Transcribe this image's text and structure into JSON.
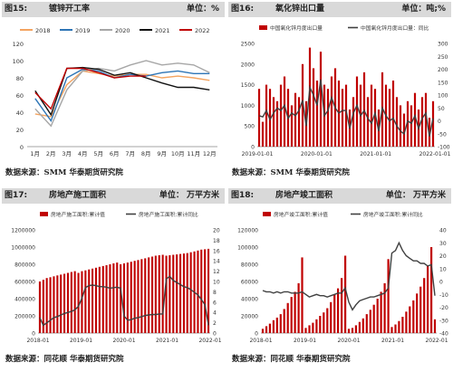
{
  "panels": [
    {
      "fig": "图15:",
      "title": "镀锌开工率",
      "unit": "单位：%",
      "source": "数据来源：SMM 华泰期货研究院",
      "chart_data": {
        "type": "line",
        "categories": [
          "1月",
          "2月",
          "3月",
          "4月",
          "5月",
          "6月",
          "7月",
          "8月",
          "9月",
          "10月",
          "11月",
          "12月"
        ],
        "ylim": [
          0,
          120
        ],
        "yticks": [
          0,
          20,
          40,
          60,
          80,
          100,
          120
        ],
        "grid": false,
        "legend": "top",
        "series": [
          {
            "name": "2018",
            "color": "#f4a460",
            "values": [
              38,
              35,
              72,
              88,
              85,
              82,
              84,
              84,
              80,
              82,
              80,
              77
            ]
          },
          {
            "name": "2019",
            "color": "#2e75b6",
            "values": [
              56,
              30,
              80,
              90,
              88,
              80,
              84,
              82,
              86,
              88,
              85,
              85
            ]
          },
          {
            "name": "2020",
            "color": "#a6a6a6",
            "values": [
              44,
              24,
              66,
              88,
              91,
              88,
              95,
              100,
              95,
              97,
              95,
              86
            ]
          },
          {
            "name": "2021",
            "color": "#111111",
            "values": [
              65,
              37,
              91,
              92,
              90,
              83,
              86,
              80,
              74,
              69,
              69,
              66
            ]
          },
          {
            "name": "2022",
            "color": "#c00000",
            "values": [
              63,
              44,
              91,
              91,
              86,
              80,
              82,
              82,
              null,
              null,
              null,
              null
            ]
          }
        ]
      }
    },
    {
      "fig": "图16:",
      "title": "氧化锌出口量",
      "unit": "单位：吨;%",
      "source": "数据来源：SMM 华泰期货研究院",
      "chart_data": {
        "type": "bar",
        "x_tick_labels": [
          "2019-01-01",
          "2020-01-01",
          "2021-01-01",
          "2022-01-01"
        ],
        "ylim_left": [
          0,
          2500
        ],
        "yticks_left": [
          0,
          500,
          1000,
          1500,
          2000,
          2500
        ],
        "ylim_right": [
          -100,
          300
        ],
        "yticks_right": [
          -100,
          -50,
          0,
          50,
          100,
          150,
          200,
          250,
          300
        ],
        "grid": false,
        "legend": "top",
        "series": [
          {
            "name": "中国氧化锌月度出口量",
            "axis": "left",
            "type": "bar",
            "color": "#c00000",
            "values": [
              1400,
              600,
              1500,
              1400,
              1200,
              1100,
              1500,
              1700,
              1400,
              1000,
              1300,
              1200,
              2000,
              1100,
              2400,
              1900,
              1600,
              2300,
              1500,
              1400,
              1700,
              1900,
              1600,
              1400,
              1500,
              900,
              1200,
              1700,
              1500,
              1800,
              1200,
              1500,
              1400,
              900,
              1800,
              1500,
              1400,
              1600,
              1200,
              1000,
              800,
              1100,
              1000,
              1300,
              900,
              1200,
              1300,
              700,
              1100
            ]
          },
          {
            "name": "中国氧化锌月度出口量：同比",
            "axis": "right",
            "type": "line",
            "color": "#404040",
            "values": [
              20,
              15,
              40,
              5,
              30,
              50,
              40,
              60,
              10,
              30,
              20,
              40,
              80,
              -20,
              130,
              100,
              60,
              160,
              20,
              40,
              90,
              50,
              30,
              40,
              40,
              -30,
              30,
              60,
              20,
              40,
              10,
              -10,
              30,
              -40,
              50,
              20,
              0,
              10,
              -20,
              -40,
              -50,
              0,
              -10,
              20,
              -30,
              10,
              30,
              -60,
              10
            ]
          }
        ]
      }
    },
    {
      "fig": "图17:",
      "title": "房地产施工面积",
      "unit": "单位： 万平方米",
      "source": "数据来源：同花顺 华泰期货研究院",
      "chart_data": {
        "type": "bar",
        "x_tick_labels": [
          "2018-01",
          "2019-01",
          "2020-01",
          "2021-01",
          "2022-01"
        ],
        "ylim_left": [
          0,
          1200000
        ],
        "yticks_left": [
          0,
          200000,
          400000,
          600000,
          800000,
          1000000,
          1200000
        ],
        "ylim_right": [
          0,
          20
        ],
        "yticks_right": [
          0,
          2,
          4,
          6,
          8,
          10,
          12,
          14,
          16,
          18,
          20
        ],
        "grid": false,
        "legend": "top",
        "series": [
          {
            "name": "房地产施工面积:累计值",
            "axis": "left",
            "type": "bar",
            "color": "#c00000",
            "values": [
              600000,
              620000,
              640000,
              650000,
              660000,
              670000,
              680000,
              690000,
              700000,
              710000,
              720000,
              700000,
              720000,
              730000,
              740000,
              750000,
              760000,
              770000,
              780000,
              790000,
              800000,
              810000,
              820000,
              800000,
              810000,
              820000,
              830000,
              840000,
              850000,
              860000,
              870000,
              880000,
              890000,
              900000,
              905000,
              910000,
              900000,
              905000,
              910000,
              915000,
              920000,
              925000,
              930000,
              940000,
              950000,
              960000,
              970000,
              975000,
              980000
            ]
          },
          {
            "name": "房地产施工面积:累计同比",
            "axis": "right",
            "type": "line",
            "color": "#404040",
            "values": [
              3,
              1.5,
              2,
              2.5,
              3,
              3.2,
              3.5,
              3.8,
              4,
              4.2,
              4.5,
              5.2,
              6.8,
              8.8,
              9.2,
              9.3,
              9.2,
              9.0,
              9.0,
              8.9,
              8.7,
              8.8,
              8.9,
              8.7,
              3.3,
              2.5,
              2.6,
              2.9,
              3.0,
              3.2,
              3.4,
              3.5,
              3.6,
              3.6,
              3.7,
              3.7,
              10.5,
              11.0,
              10.2,
              9.8,
              9.4,
              9.0,
              8.8,
              8.4,
              7.9,
              7.4,
              6.5,
              5.5,
              1.5
            ]
          }
        ]
      }
    },
    {
      "fig": "图18:",
      "title": "房地产竣工面积",
      "unit": "单位： 万平方米",
      "source": "数据来源：同花顺 华泰期货研究院",
      "chart_data": {
        "type": "bar",
        "x_tick_labels": [
          "2018-01",
          "2019-01",
          "2020-01",
          "2021-01",
          "2022-01"
        ],
        "ylim_left": [
          0,
          120000
        ],
        "yticks_left": [
          0,
          20000,
          40000,
          60000,
          80000,
          100000,
          120000
        ],
        "ylim_right": [
          -40,
          40
        ],
        "yticks_right": [
          -40,
          -30,
          -20,
          -10,
          0,
          10,
          20,
          30,
          40
        ],
        "grid": false,
        "legend": "top",
        "series": [
          {
            "name": "房地产竣工面积:累计值",
            "axis": "left",
            "type": "bar",
            "color": "#c00000",
            "values": [
              5000,
              8000,
              11000,
              15000,
              18000,
              22000,
              28000,
              35000,
              42000,
              48000,
              58000,
              88000,
              6000,
              9000,
              12000,
              16000,
              20000,
              24000,
              29000,
              36000,
              45000,
              52000,
              64000,
              90000,
              5000,
              6000,
              9000,
              13000,
              17000,
              22000,
              27000,
              33000,
              40000,
              48000,
              58000,
              86000,
              7000,
              10000,
              14000,
              19000,
              25000,
              31000,
              38000,
              46000,
              54000,
              64000,
              78000,
              100000,
              16000
            ]
          },
          {
            "name": "房地产竣工面积:累计同比",
            "axis": "right",
            "type": "line",
            "color": "#404040",
            "values": [
              -7,
              -8,
              -8,
              -9,
              -8,
              -9,
              -8,
              -8,
              -9,
              -9,
              -9,
              -8,
              -10,
              -12,
              -11,
              -10,
              -11,
              -11,
              -12,
              -11,
              -10,
              -9,
              -9,
              -5,
              -16,
              -22,
              -18,
              -15,
              -14,
              -13,
              -12,
              -12,
              -11,
              -10,
              -9,
              -5,
              22,
              24,
              30,
              24,
              20,
              18,
              16,
              16,
              14,
              14,
              12,
              13,
              -11
            ]
          }
        ]
      }
    }
  ]
}
